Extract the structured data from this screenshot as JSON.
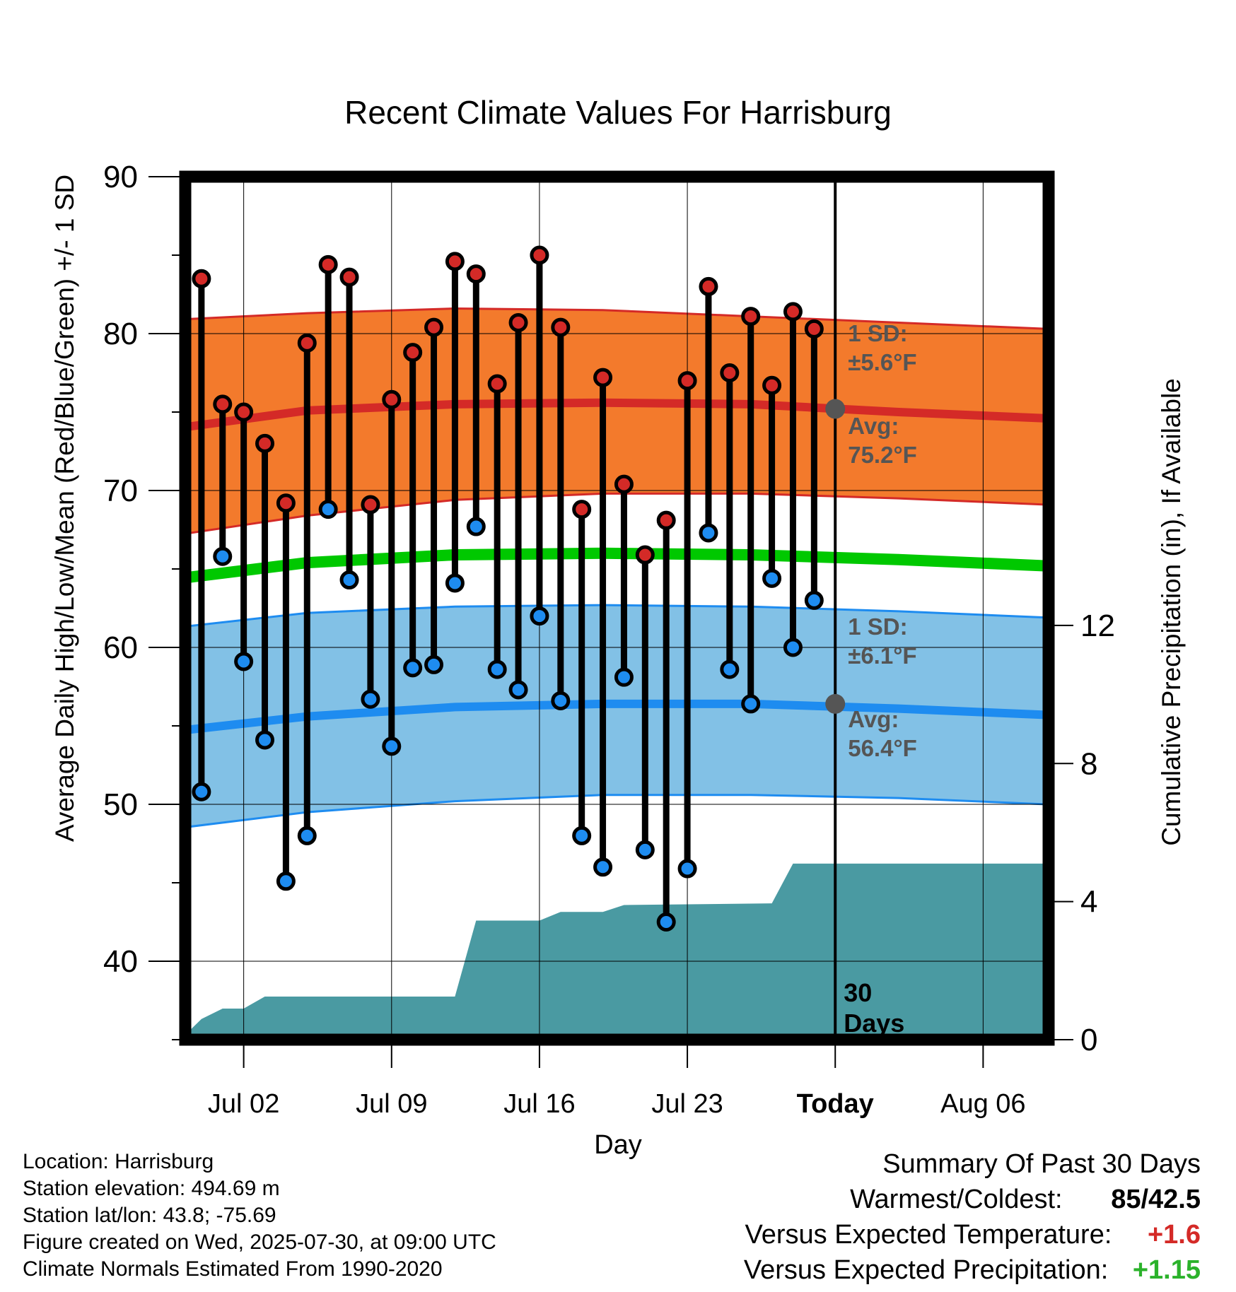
{
  "chart_data": {
    "type": "line",
    "title": "Recent Climate Values For Harrisburg",
    "xlabel": "Day",
    "ylabel": "Average Daily High/Low/Mean (Red/Blue/Green) +/- 1 SD",
    "ylabel_right": "Cumulative Precipitation (in), If Available",
    "ylim": [
      35,
      90
    ],
    "ylim_right": [
      0,
      25
    ],
    "y_ticks": [
      40,
      50,
      60,
      70,
      80,
      90
    ],
    "y_right_ticks": [
      0,
      4,
      8,
      12
    ],
    "x_ticks": [
      {
        "date": "2025-07-02",
        "label": "Jul 02"
      },
      {
        "date": "2025-07-09",
        "label": "Jul 09"
      },
      {
        "date": "2025-07-16",
        "label": "Jul 16"
      },
      {
        "date": "2025-07-23",
        "label": "Jul 23"
      },
      {
        "date": "2025-07-30",
        "label": "Today"
      },
      {
        "date": "2025-08-06",
        "label": "Aug 06"
      }
    ],
    "x_range": [
      "2025-06-29",
      "2025-08-09"
    ],
    "today": "2025-07-30",
    "days": [
      "2025-06-30",
      "2025-07-01",
      "2025-07-02",
      "2025-07-03",
      "2025-07-04",
      "2025-07-05",
      "2025-07-06",
      "2025-07-07",
      "2025-07-08",
      "2025-07-09",
      "2025-07-10",
      "2025-07-11",
      "2025-07-12",
      "2025-07-13",
      "2025-07-14",
      "2025-07-15",
      "2025-07-16",
      "2025-07-17",
      "2025-07-18",
      "2025-07-19",
      "2025-07-20",
      "2025-07-21",
      "2025-07-22",
      "2025-07-23",
      "2025-07-24",
      "2025-07-25",
      "2025-07-26",
      "2025-07-27",
      "2025-07-28",
      "2025-07-29"
    ],
    "series": [
      {
        "name": "High",
        "values": [
          83.5,
          75.5,
          75.0,
          73.0,
          69.2,
          79.4,
          84.4,
          83.6,
          69.1,
          75.8,
          78.8,
          80.4,
          84.6,
          83.8,
          76.8,
          80.7,
          85.0,
          80.4,
          68.8,
          77.2,
          70.4,
          65.9,
          68.1,
          77.0,
          83.0,
          77.5,
          81.1,
          76.7,
          81.4,
          80.3
        ]
      },
      {
        "name": "Low",
        "values": [
          50.8,
          65.8,
          59.1,
          54.1,
          45.1,
          48.0,
          68.8,
          64.3,
          56.7,
          53.7,
          58.7,
          58.9,
          64.1,
          67.7,
          58.6,
          57.3,
          62.0,
          56.6,
          48.0,
          46.0,
          58.1,
          47.1,
          42.5,
          45.9,
          67.3,
          58.6,
          56.4,
          64.4,
          60.0,
          63.0
        ]
      }
    ],
    "normals": {
      "dates": [
        "2025-06-29",
        "2025-07-05",
        "2025-07-12",
        "2025-07-19",
        "2025-07-26",
        "2025-08-02",
        "2025-08-09"
      ],
      "high_mean": [
        74.0,
        75.1,
        75.5,
        75.6,
        75.5,
        75.0,
        74.6
      ],
      "high_sd_upper": [
        80.9,
        81.3,
        81.6,
        81.5,
        81.1,
        80.7,
        80.3
      ],
      "high_sd_lower": [
        67.2,
        68.4,
        69.4,
        69.8,
        69.8,
        69.5,
        69.1
      ],
      "mean": [
        64.4,
        65.4,
        65.9,
        66.0,
        65.9,
        65.6,
        65.2
      ],
      "low_mean": [
        54.7,
        55.6,
        56.2,
        56.4,
        56.4,
        56.1,
        55.7
      ],
      "low_sd_upper": [
        61.3,
        62.2,
        62.6,
        62.7,
        62.6,
        62.3,
        61.9
      ],
      "low_sd_lower": [
        48.5,
        49.5,
        50.2,
        50.6,
        50.6,
        50.4,
        50.0
      ]
    },
    "precip": {
      "dates": [
        "2025-06-29",
        "2025-06-30",
        "2025-07-01",
        "2025-07-02",
        "2025-07-03",
        "2025-07-12",
        "2025-07-13",
        "2025-07-16",
        "2025-07-17",
        "2025-07-19",
        "2025-07-20",
        "2025-07-27",
        "2025-07-28",
        "2025-08-09"
      ],
      "values": [
        0.0,
        0.6,
        0.9,
        0.9,
        1.25,
        1.25,
        3.45,
        3.45,
        3.7,
        3.7,
        3.9,
        3.95,
        5.1,
        5.1
      ]
    },
    "labels": {
      "high_sd": "1 SD:",
      "high_sd_value": "±5.6°F",
      "high_avg": "Avg:",
      "high_avg_value": "75.2°F",
      "high_avg_point": 75.2,
      "low_sd": "1 SD:",
      "low_sd_value": "±6.1°F",
      "low_avg": "Avg:",
      "low_avg_value": "56.4°F",
      "low_avg_point": 56.4,
      "period_count": "30",
      "period_unit": "Days"
    },
    "colors": {
      "high_band": "#f37a2c",
      "high_line": "#d42a27",
      "low_band": "#82c1e6",
      "low_line": "#1e8cf0",
      "mean_line": "#00c800",
      "precip": "#4a9aa2",
      "high_dot": "#d42a27",
      "low_dot": "#1e8cf0",
      "label": "#555555",
      "avg_dot": "#555555"
    },
    "grid": true
  },
  "info": {
    "location": "Location: Harrisburg",
    "elevation": "Station elevation: 494.69 m",
    "latlon": "Station lat/lon: 43.8; -75.69",
    "created": "Figure created on Wed, 2025-07-30, at 09:00 UTC",
    "normals": "Climate Normals Estimated From 1990-2020"
  },
  "summary": {
    "title": "Summary Of Past 30 Days",
    "extremes_label": "Warmest/Coldest:",
    "warmest": "85",
    "separator": "/",
    "coldest": "42.5",
    "temp_label": "Versus Expected Temperature:",
    "temp_value": "+1.6",
    "temp_color": "#d42a27",
    "precip_label": "Versus Expected Precipitation:",
    "precip_value": "+1.15",
    "precip_color": "#2bb22b"
  }
}
